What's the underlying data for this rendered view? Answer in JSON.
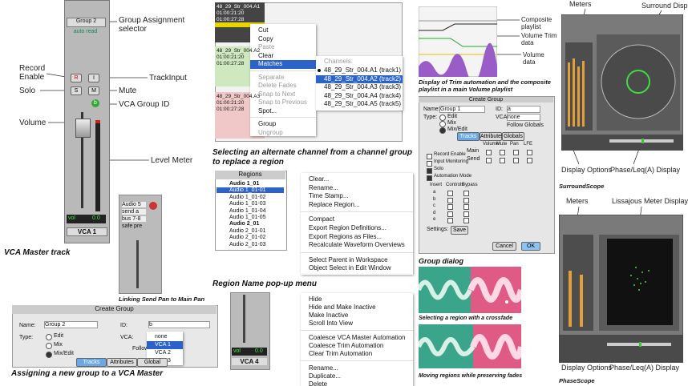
{
  "vca_master": {
    "strip": {
      "group": "Group 2",
      "mode": "auto read",
      "rec": "R",
      "input": "I",
      "solo": "S",
      "mute": "M",
      "vca_id": "b",
      "vol_label": "vol",
      "vol_value": "0.0",
      "name": "VCA 1"
    },
    "callouts": {
      "group_assignment": "Group Assignment selector",
      "record_enable": "Record Enable",
      "track_input": "TrackInput",
      "solo": "Solo",
      "mute": "Mute",
      "vca_group_id": "VCA Group ID",
      "volume": "Volume",
      "level_meter": "Level Meter"
    },
    "caption": "VCA Master track"
  },
  "send_pan": {
    "strip": {
      "track": "Audio 5",
      "send": "send a",
      "bus": "bus 7-8",
      "safe": "safe",
      "pre": "pre"
    },
    "caption": "Linking Send Pan to Main Pan"
  },
  "assign_dialog": {
    "title": "Create Group",
    "name_label": "Name:",
    "name_value": "Group 2",
    "type_label": "Type:",
    "types": [
      "Edit",
      "Mix",
      "Mix/Edit"
    ],
    "id_label": "ID:",
    "id_value": "b",
    "vca_label": "VCA:",
    "vca_options": [
      "none",
      "VCA 1",
      "VCA 2",
      "VCA 3"
    ],
    "follow": "Follow",
    "tabs": [
      "Tracks",
      "Attributes",
      "Global"
    ],
    "caption": "Assigning a new group to a VCA Master"
  },
  "matches": {
    "clips": [
      {
        "name": "48_29_Str_004.A1",
        "start": "01:00:21:20",
        "end": "01:00:27:28"
      },
      {
        "name": "48_29_Str_004.A2",
        "start": "01:00:21:20",
        "end": "01:00:27:28"
      },
      {
        "name": "48_29_Str_004.A3",
        "start": "01:00:21:20",
        "end": "01:00:27:28"
      }
    ],
    "menu": [
      [
        "Cut",
        "Copy",
        "Paste",
        "Clear",
        "Matches"
      ],
      [
        "Separate",
        "Delete Fades",
        "Snap to Next",
        "Snap to Previous",
        "Spot..."
      ],
      [
        "Group",
        "Ungroup"
      ]
    ],
    "submenu_title": "Channels:",
    "channels": [
      "48_29_Str_004.A1 (track1)",
      "48_29_Str_004.A2 (track2)",
      "48_29_Str_004.A3 (track3)",
      "48_29_Str_004.A4 (track4)",
      "48_29_Str_004.A5 (track5)"
    ],
    "caption": "Selecting an alternate channel from a channel group to replace a region"
  },
  "regions": {
    "header": "Regions",
    "items": [
      "Audio 1_01",
      "Audio 1_01-01",
      "Audio 1_01-02",
      "Audio 1_01-03",
      "Audio 1_01-04",
      "Audio 1_01-05",
      "Audio 2_01",
      "Audio 2_01-01",
      "Audio 2_01-02",
      "Audio 2_01-03"
    ],
    "caption": "Region Name pop-up menu"
  },
  "region_menu": [
    [
      "Clear...",
      "Rename...",
      "Time Stamp...",
      "Replace Region..."
    ],
    [
      "Compact",
      "Export Region Definitions...",
      "Export Regions as Files...",
      "Recalculate Waveform Overviews"
    ],
    [
      "Select Parent in Workspace",
      "Object Select in Edit Window"
    ]
  ],
  "vca4": {
    "vol_label": "vol",
    "vol_value": "0.0",
    "name": "VCA 4"
  },
  "track_menu": [
    [
      "Hide",
      "Hide and Make Inactive",
      "Make Inactive",
      "Scroll Into View"
    ],
    [
      "Coalesce VCA Master Automation",
      "Coalesce Trim Automation",
      "Clear Trim Automation"
    ],
    [
      "Rename...",
      "Duplicate...",
      "Delete"
    ]
  ],
  "trim": {
    "callouts": {
      "composite": "Composite playlist",
      "trim": "Volume Trim data",
      "volume": "Volume data"
    },
    "caption": "Display of Trim automation and the composite playlist in a main Volume playlist"
  },
  "group_dialog": {
    "title": "Create Group",
    "name_label": "Name:",
    "name_value": "Group 1",
    "id_label": "ID:",
    "id_value": "a",
    "type_label": "Type:",
    "types": [
      "Edit",
      "Mix",
      "Mix/Edit"
    ],
    "vca_label": "VCA:",
    "vca_value": "none",
    "follow": "Follow Globals",
    "tabs": [
      "Tracks",
      "Attributes",
      "Globals"
    ],
    "checks": [
      "Record Enable",
      "Input Monitoring",
      "Solo",
      "Automation Mode"
    ],
    "columns": [
      "Volume",
      "Mute",
      "Pan",
      "LFE"
    ],
    "main": "Main",
    "send": "Send",
    "insert": [
      "Insert",
      "Controls",
      "Bypass"
    ],
    "rows": [
      "a",
      "b",
      "c",
      "d",
      "e"
    ],
    "settings": "Settings:",
    "save": "Save",
    "cancel": "Cancel",
    "ok": "OK",
    "caption": "Group dialog"
  },
  "crossfade": {
    "caption1": "Selecting a region with a crossfade",
    "caption2": "Moving regions while preserving fades"
  },
  "surround": {
    "meters": "Meters",
    "display": "Surround Display",
    "options": "Display Options",
    "phase": "Phase/Leq(A) Display",
    "caption": "SurroundScope"
  },
  "phase": {
    "meters": "Meters",
    "display": "Lissajous Meter Display",
    "options": "Display Options",
    "phase": "Phase/Leq(A) Display",
    "caption": "PhaseScope"
  }
}
